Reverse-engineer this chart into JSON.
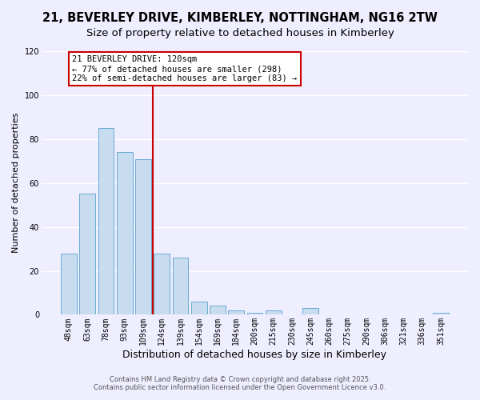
{
  "title": "21, BEVERLEY DRIVE, KIMBERLEY, NOTTINGHAM, NG16 2TW",
  "subtitle": "Size of property relative to detached houses in Kimberley",
  "xlabel": "Distribution of detached houses by size in Kimberley",
  "ylabel": "Number of detached properties",
  "bar_labels": [
    "48sqm",
    "63sqm",
    "78sqm",
    "93sqm",
    "109sqm",
    "124sqm",
    "139sqm",
    "154sqm",
    "169sqm",
    "184sqm",
    "200sqm",
    "215sqm",
    "230sqm",
    "245sqm",
    "260sqm",
    "275sqm",
    "290sqm",
    "306sqm",
    "321sqm",
    "336sqm",
    "351sqm"
  ],
  "bar_values": [
    28,
    55,
    85,
    74,
    71,
    28,
    26,
    6,
    4,
    2,
    1,
    2,
    0,
    3,
    0,
    0,
    0,
    0,
    0,
    0,
    1
  ],
  "bar_color": "#c8dcf0",
  "bar_edge_color": "#6aaad4",
  "vline_color": "#cc0000",
  "annotation_title": "21 BEVERLEY DRIVE: 120sqm",
  "annotation_line1": "← 77% of detached houses are smaller (298)",
  "annotation_line2": "22% of semi-detached houses are larger (83) →",
  "annotation_box_facecolor": "#ffffff",
  "annotation_box_edgecolor": "#cc0000",
  "ylim": [
    0,
    120
  ],
  "yticks": [
    0,
    20,
    40,
    60,
    80,
    100,
    120
  ],
  "footer1": "Contains HM Land Registry data © Crown copyright and database right 2025.",
  "footer2": "Contains public sector information licensed under the Open Government Licence v3.0.",
  "bg_color": "#eeeeff",
  "plot_bg_color": "#eeeeff",
  "grid_color": "#ffffff",
  "title_fontsize": 10.5,
  "subtitle_fontsize": 9.5,
  "xlabel_fontsize": 9,
  "ylabel_fontsize": 8,
  "tick_fontsize": 7,
  "annotation_fontsize": 7.5,
  "footer_fontsize": 6
}
